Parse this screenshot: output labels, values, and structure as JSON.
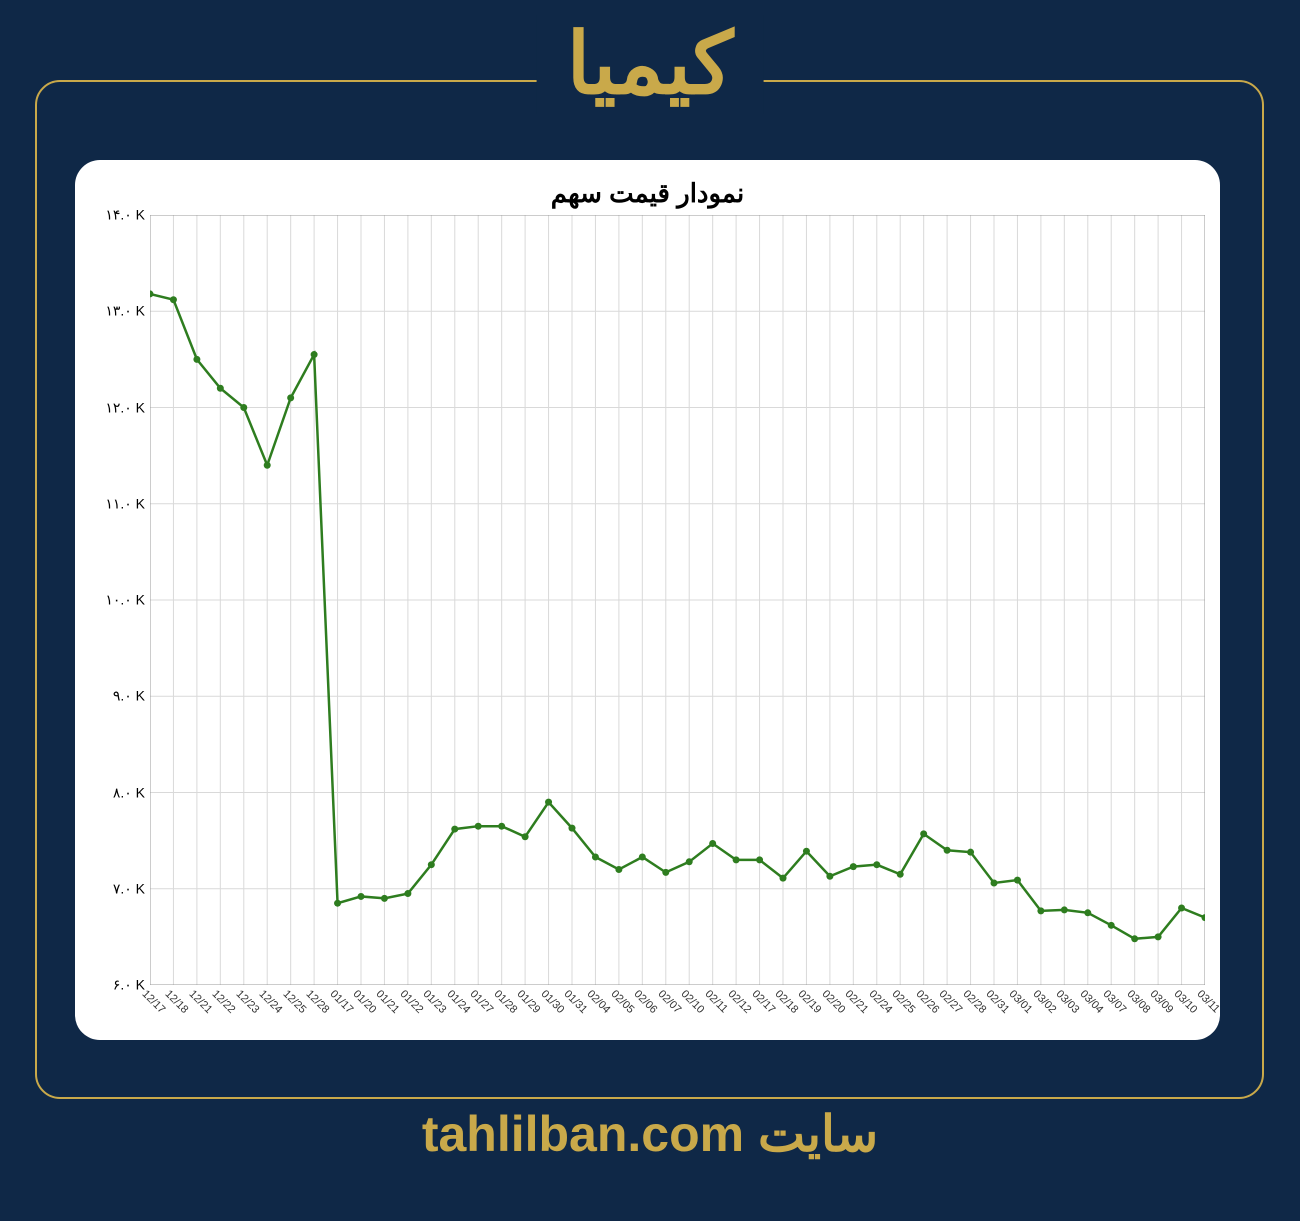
{
  "header": {
    "title": "کیمیا"
  },
  "footer": {
    "label": "سایت",
    "domain": "tahlilban.com"
  },
  "chart": {
    "type": "line",
    "title": "نمودار قیمت سهم",
    "background_color": "#ffffff",
    "grid_color": "#d9d9d9",
    "line_color": "#2e7d1f",
    "marker_color": "#2e7d1f",
    "line_width": 2.5,
    "marker_radius": 3.5,
    "title_fontsize": 26,
    "axis_label_fontsize": 14,
    "tick_label_fontsize": 11,
    "ylim": [
      6000,
      14000
    ],
    "y_ticks": [
      6000,
      7000,
      8000,
      9000,
      10000,
      11000,
      12000,
      13000,
      14000
    ],
    "y_tick_labels": [
      "۶.۰ K",
      "۷.۰ K",
      "۸.۰ K",
      "۹.۰ K",
      "۱۰.۰ K",
      "۱۱.۰ K",
      "۱۲.۰ K",
      "۱۳.۰ K",
      "۱۴.۰ K"
    ],
    "x_labels": [
      "12/17",
      "12/18",
      "12/21",
      "12/22",
      "12/23",
      "12/24",
      "12/25",
      "12/28",
      "01/17",
      "01/20",
      "01/21",
      "01/22",
      "01/23",
      "01/24",
      "01/27",
      "01/28",
      "01/29",
      "01/30",
      "01/31",
      "02/04",
      "02/05",
      "02/06",
      "02/07",
      "02/10",
      "02/11",
      "02/12",
      "02/17",
      "02/18",
      "02/19",
      "02/20",
      "02/21",
      "02/24",
      "02/25",
      "02/26",
      "02/27",
      "02/28",
      "02/31",
      "03/01",
      "03/02",
      "03/03",
      "03/04",
      "03/07",
      "03/08",
      "03/09",
      "03/10",
      "03/11"
    ],
    "values": [
      13180,
      13120,
      12500,
      12200,
      12000,
      11400,
      12100,
      12550,
      6850,
      6920,
      6900,
      6950,
      7250,
      7620,
      7650,
      7650,
      7540,
      7900,
      7630,
      7330,
      7200,
      7330,
      7170,
      7280,
      7470,
      7300,
      7300,
      7110,
      7390,
      7130,
      7230,
      7250,
      7150,
      7570,
      7400,
      7380,
      7060,
      7090,
      6770,
      6780,
      6750,
      6620,
      6480,
      6500,
      6800,
      6700
    ]
  }
}
